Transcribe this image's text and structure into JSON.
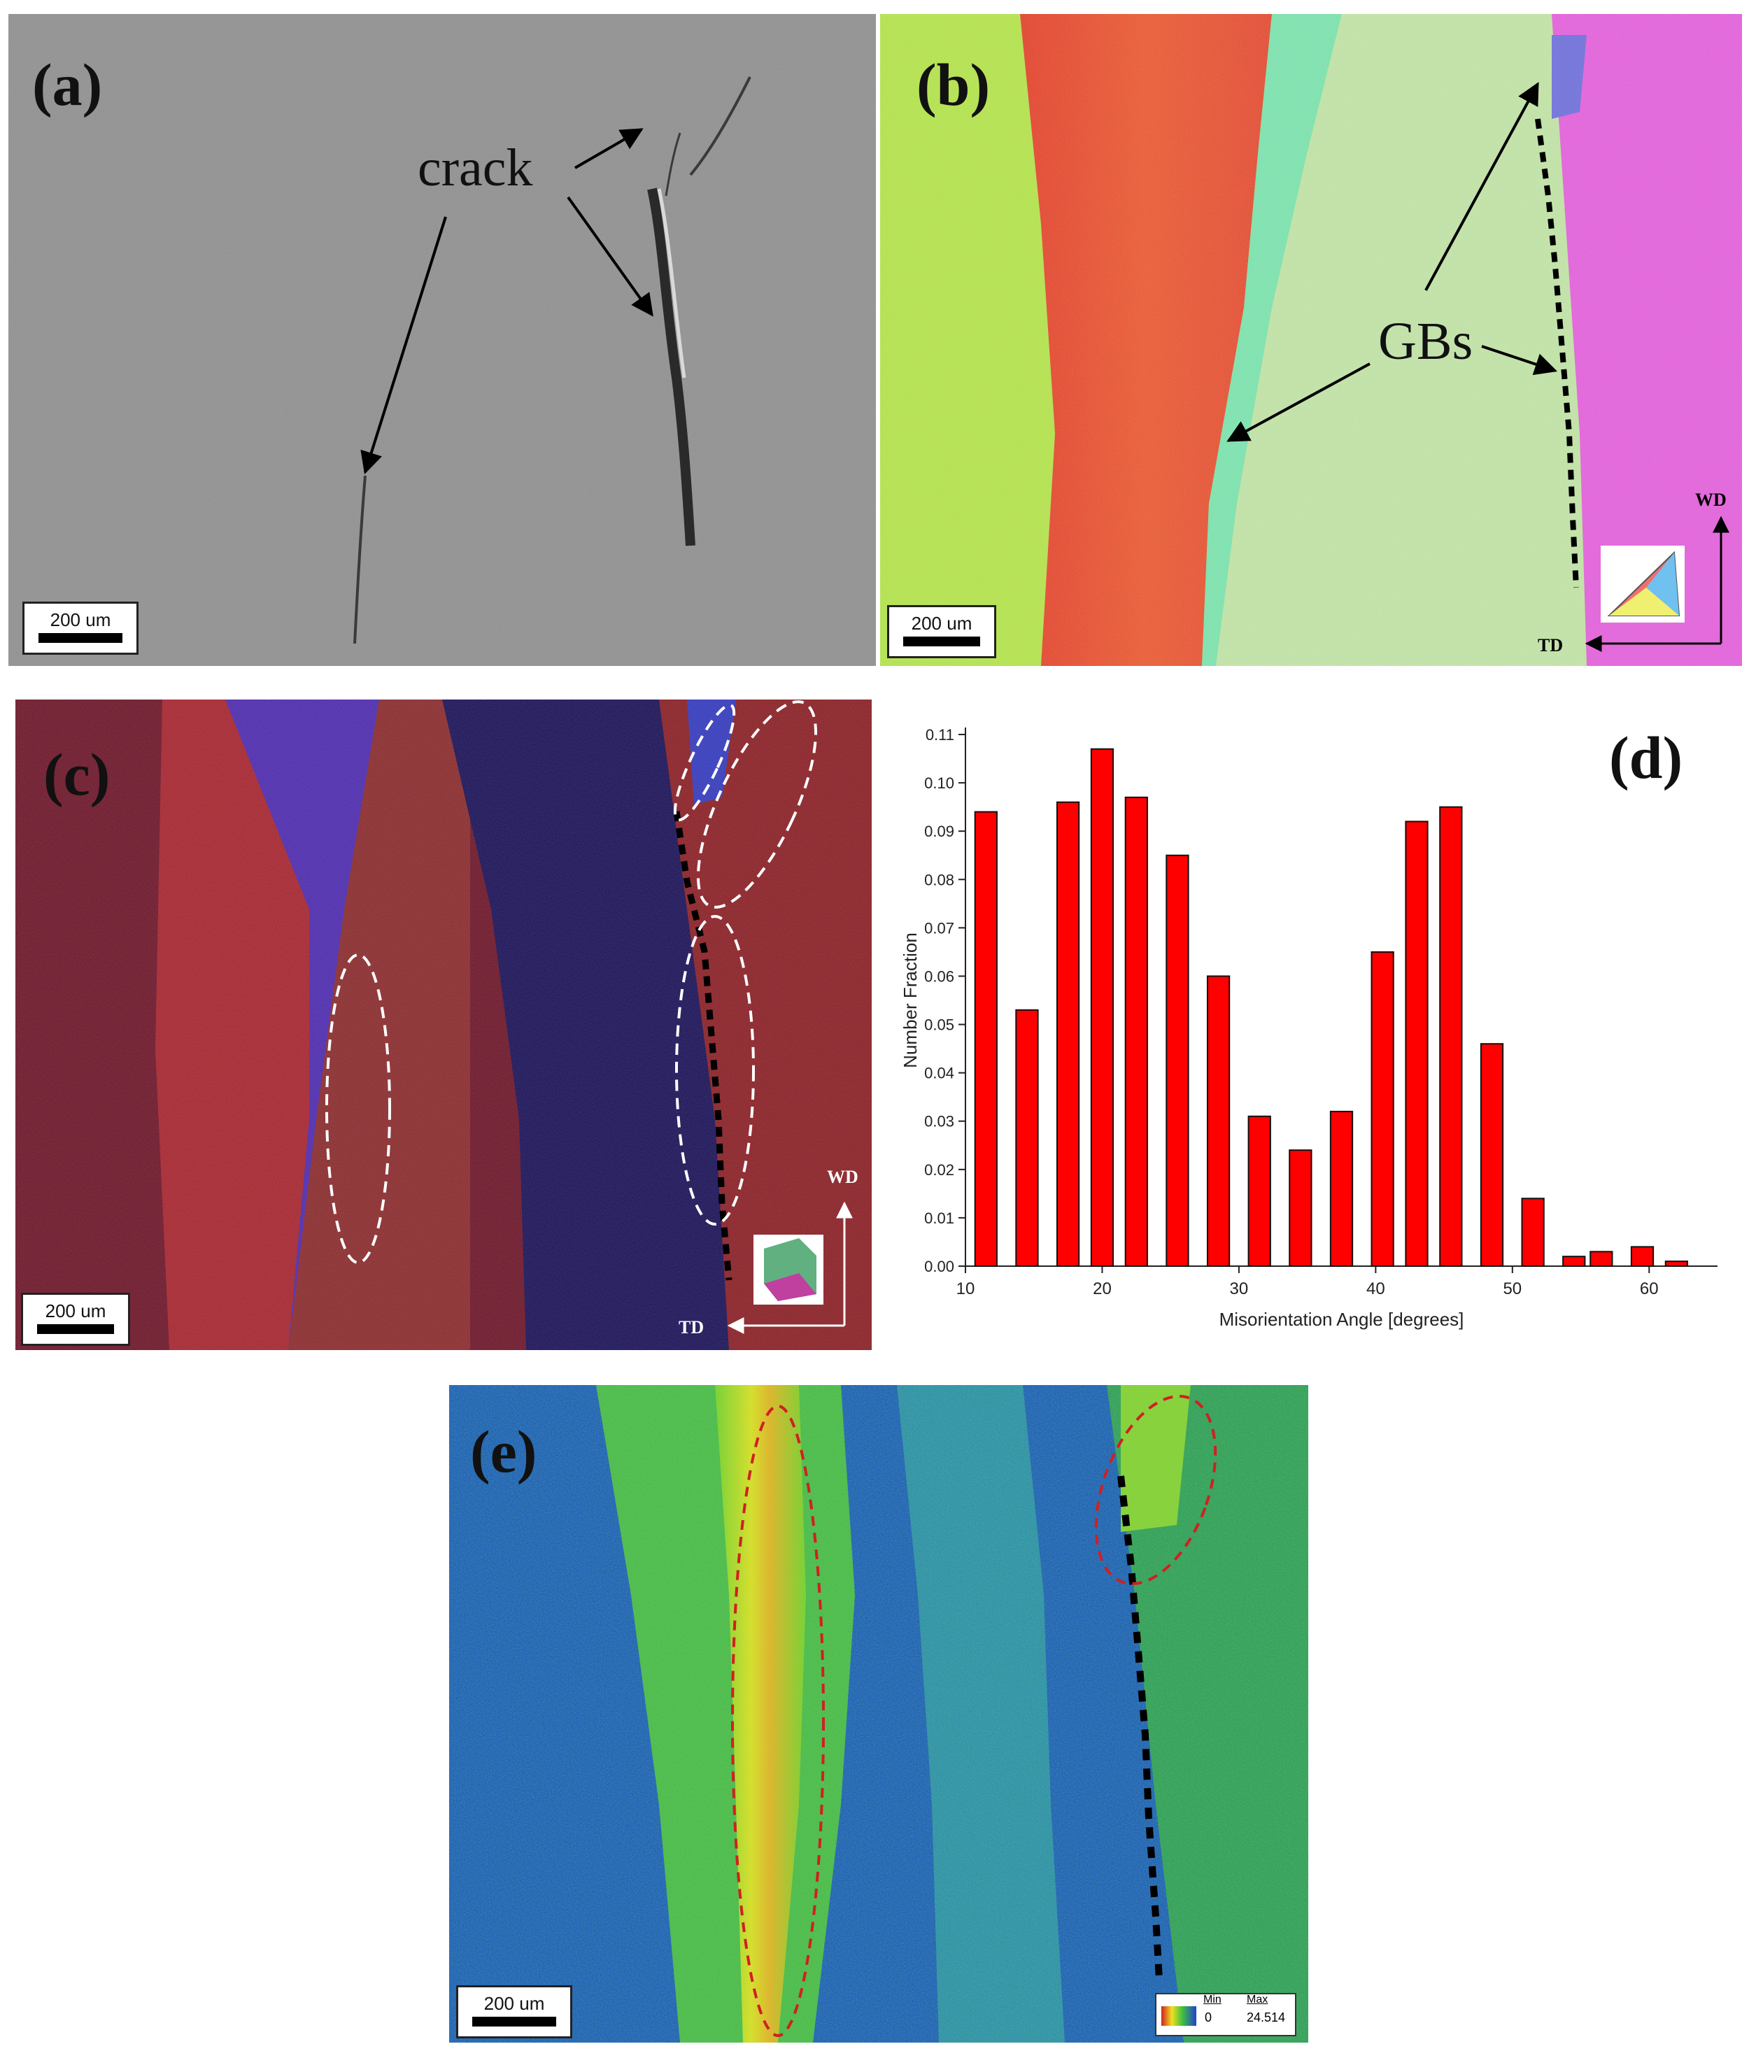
{
  "panels": {
    "a": {
      "label": "(a)",
      "annotation": "crack",
      "scale": "200 um"
    },
    "b": {
      "label": "(b)",
      "annotation": "GBs",
      "scale": "200 um",
      "axis_wd": "WD",
      "axis_td": "TD"
    },
    "c": {
      "label": "(c)",
      "scale": "200 um",
      "axis_wd": "WD",
      "axis_td": "TD"
    },
    "d": {
      "label": "(d)"
    },
    "e": {
      "label": "(e)",
      "scale": "200 um",
      "legend_min_label": "Min",
      "legend_max_label": "Max",
      "legend_min_value": "0",
      "legend_max_value": "24.514"
    }
  },
  "colors": {
    "bar_fill": "#ff0000",
    "bar_stroke": "#111111",
    "sem_gray": "#8d8d8d"
  },
  "chart_data": {
    "type": "bar",
    "xlabel": "Misorientation Angle [degrees]",
    "ylabel": "Number Fraction",
    "xlim": [
      10,
      65
    ],
    "ylim": [
      0,
      0.11
    ],
    "xticks": [
      10,
      20,
      30,
      40,
      50,
      60
    ],
    "yticks": [
      "0.00",
      "0.01",
      "0.02",
      "0.03",
      "0.04",
      "0.05",
      "0.06",
      "0.07",
      "0.08",
      "0.09",
      "0.10",
      "0.11"
    ],
    "x": [
      11.5,
      14.5,
      17.5,
      20,
      22.5,
      25.5,
      28.5,
      31.5,
      34.5,
      37.5,
      40.5,
      43,
      45.5,
      48.5,
      51.5,
      54.5,
      56.5,
      59.5,
      62
    ],
    "values": [
      0.094,
      0.053,
      0.096,
      0.107,
      0.097,
      0.085,
      0.06,
      0.031,
      0.024,
      0.032,
      0.065,
      0.092,
      0.095,
      0.046,
      0.014,
      0.002,
      0.003,
      0.004,
      0.001
    ],
    "grid": false,
    "legend": "none"
  }
}
